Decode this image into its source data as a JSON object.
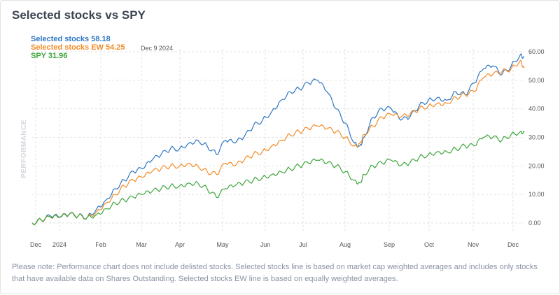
{
  "page": {
    "title": "Selected stocks vs SPY",
    "note": "Please note: Performance chart does not include delisted stocks. Selected stocks line is based on market cap weighted averages and includes only stocks that have available data on Shares Outstanding. Selected stocks EW line is based on equally weighted averages."
  },
  "chart_data": {
    "type": "line",
    "date_label": "Dec 9 2024",
    "ylabel": "PERFORMANCE",
    "ylim": [
      0,
      60
    ],
    "yticks": [
      "0.00",
      "10.00",
      "20.00",
      "30.00",
      "40.00",
      "50.00",
      "60.00"
    ],
    "xticks": [
      "Dec",
      "2024",
      "Feb",
      "Mar",
      "Apr",
      "May",
      "Jun",
      "Jul",
      "Aug",
      "Sep",
      "Oct",
      "Nov",
      "Dec"
    ],
    "grid": true,
    "legend_position": "top-left",
    "x": [
      "2023-12-01",
      "2023-12-08",
      "2023-12-15",
      "2023-12-22",
      "2023-12-29",
      "2024-01-05",
      "2024-01-12",
      "2024-01-19",
      "2024-01-26",
      "2024-02-02",
      "2024-02-09",
      "2024-02-16",
      "2024-02-23",
      "2024-03-01",
      "2024-03-08",
      "2024-03-15",
      "2024-03-22",
      "2024-03-29",
      "2024-04-05",
      "2024-04-12",
      "2024-04-19",
      "2024-04-26",
      "2024-05-03",
      "2024-05-10",
      "2024-05-17",
      "2024-05-24",
      "2024-05-31",
      "2024-06-07",
      "2024-06-14",
      "2024-06-21",
      "2024-06-28",
      "2024-07-05",
      "2024-07-12",
      "2024-07-19",
      "2024-07-26",
      "2024-08-02",
      "2024-08-06",
      "2024-08-09",
      "2024-08-16",
      "2024-08-23",
      "2024-08-30",
      "2024-09-06",
      "2024-09-13",
      "2024-09-20",
      "2024-09-27",
      "2024-10-04",
      "2024-10-11",
      "2024-10-18",
      "2024-10-25",
      "2024-11-01",
      "2024-11-08",
      "2024-11-15",
      "2024-11-22",
      "2024-11-29",
      "2024-12-06",
      "2024-12-09"
    ],
    "series": [
      {
        "name": "Selected stocks",
        "last_label": "58.18",
        "color": "#2f78c4",
        "values": [
          0,
          1,
          2.5,
          2,
          3,
          2.5,
          2,
          5,
          8,
          12,
          15,
          18,
          19,
          22,
          24,
          26,
          26,
          28,
          29,
          27,
          24,
          29,
          28,
          30,
          34,
          36,
          39,
          43,
          46,
          47,
          49,
          50,
          46,
          40,
          35,
          28,
          27,
          30,
          37,
          40,
          40,
          36,
          37,
          41,
          43,
          44,
          43,
          46,
          45,
          49,
          54,
          55,
          52,
          55,
          59,
          58.2
        ],
        "partial": true
      },
      {
        "name": "Selected stocks EW",
        "last_label": "54.25",
        "color": "#f28c28",
        "values": [
          0,
          1,
          2,
          2,
          3,
          2.5,
          2,
          4,
          7,
          10,
          13,
          15,
          16,
          18,
          19,
          20,
          20,
          21,
          20,
          18,
          17,
          21,
          20,
          22,
          24,
          25,
          27,
          29,
          31,
          32,
          33,
          34,
          33,
          32,
          30,
          27,
          28,
          31,
          34,
          37,
          38,
          37,
          38,
          40,
          41,
          42,
          42,
          44,
          45,
          46,
          51,
          52,
          53,
          54,
          57,
          54.3
        ],
        "partial": true
      },
      {
        "name": "SPY",
        "last_label": "31.96",
        "color": "#3ea63e",
        "values": [
          0,
          1,
          2,
          2,
          3,
          2.5,
          2,
          3,
          5,
          7,
          8,
          9,
          10,
          11,
          12,
          13,
          13,
          14,
          14,
          12,
          9,
          12,
          13,
          14,
          15,
          16,
          17,
          18,
          19,
          20,
          21,
          22,
          21,
          20,
          18,
          15,
          14,
          17,
          20,
          21,
          22,
          20,
          21,
          23,
          24,
          25,
          25,
          26,
          27,
          27,
          30,
          30,
          29,
          31,
          32,
          32
        ],
        "partial": true
      }
    ]
  }
}
